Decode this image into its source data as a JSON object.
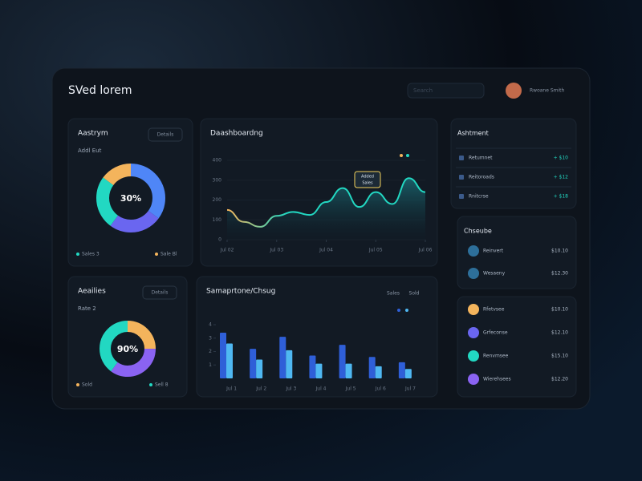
{
  "header": {
    "title": "SVed lorem",
    "search": "Search",
    "user": "Rwoane Smith"
  },
  "chart_data": [
    {
      "type": "donut",
      "title": "Aastrym",
      "subtitle": "Addl Eut",
      "button": "Details",
      "center_label": "30%",
      "values": [
        35,
        25,
        25,
        15
      ],
      "colors": [
        "#4f86f7",
        "#6a66f0",
        "#22d8c2",
        "#f4b45c"
      ],
      "legend": [
        "Sales 3",
        "Sale Bl"
      ],
      "legend_colors": [
        "#22d8c2",
        "#f4b45c"
      ]
    },
    {
      "type": "area",
      "title": "Daashboardng",
      "tooltip": [
        "Added",
        "Sales"
      ],
      "x": [
        0,
        1,
        2,
        3,
        4,
        5,
        6,
        7,
        8,
        9,
        10,
        11,
        12
      ],
      "values": [
        150,
        90,
        65,
        120,
        140,
        125,
        190,
        260,
        165,
        240,
        180,
        310,
        240
      ],
      "xlim": [
        0,
        12
      ],
      "xticks": [
        {
          "value": 0,
          "label": "Jul 02"
        },
        {
          "value": 3,
          "label": "Jul 03"
        },
        {
          "value": 6,
          "label": "Jul 04"
        },
        {
          "value": 9,
          "label": "Jul 05"
        },
        {
          "value": 12,
          "label": "Jul 06"
        }
      ],
      "ylim": [
        0,
        400
      ],
      "yticks": [
        0,
        100,
        200,
        300,
        400
      ],
      "colors": [
        "#f4b45c",
        "#22d8c2"
      ]
    },
    {
      "type": "donut",
      "title": "Aeailies",
      "subtitle": "Rate 2",
      "button": "Details",
      "center_label": "90%",
      "values": [
        25,
        35,
        40
      ],
      "colors": [
        "#f4b45c",
        "#8a63f2",
        "#22d8c2"
      ],
      "legend": [
        "Sold",
        "Sell 8"
      ],
      "legend_colors": [
        "#f4b45c",
        "#22d8c2"
      ]
    },
    {
      "type": "bar",
      "title": "Samaprtone/Chsug",
      "categories": [
        "Jul 1",
        "Jul 2",
        "Jul 3",
        "Jul 4",
        "Jul 5",
        "Jul 6",
        "Jul 7"
      ],
      "ylim": [
        0,
        4
      ],
      "yticks": [
        1,
        2,
        3,
        4
      ],
      "series": [
        {
          "name": "Sales",
          "color": "#2f5fd8",
          "values": [
            3.4,
            2.2,
            3.1,
            1.7,
            2.5,
            1.6,
            1.2
          ]
        },
        {
          "name": "Sold",
          "color": "#4fb8f2",
          "values": [
            2.6,
            1.4,
            2.1,
            1.1,
            1.1,
            0.9,
            0.7
          ]
        }
      ]
    }
  ],
  "lists": [
    {
      "title": "Ashtment",
      "rows": [
        [
          "Retumnet",
          "+ $10"
        ],
        [
          "Reitoroads",
          "+ $12"
        ],
        [
          "Rnitcrse",
          "+ $18"
        ]
      ]
    },
    {
      "title": "Chseube",
      "rows": [
        [
          "Reinvert",
          "$10.10"
        ],
        [
          "Wesaeny",
          "$12.30"
        ]
      ]
    },
    {
      "title": "",
      "rows": [
        [
          "Rfetvsee",
          "$10.10"
        ],
        [
          "Grfeconse",
          "$12.10"
        ],
        [
          "Renvmsee",
          "$15.10"
        ],
        [
          "Wierehsees",
          "$12.20"
        ]
      ]
    }
  ]
}
